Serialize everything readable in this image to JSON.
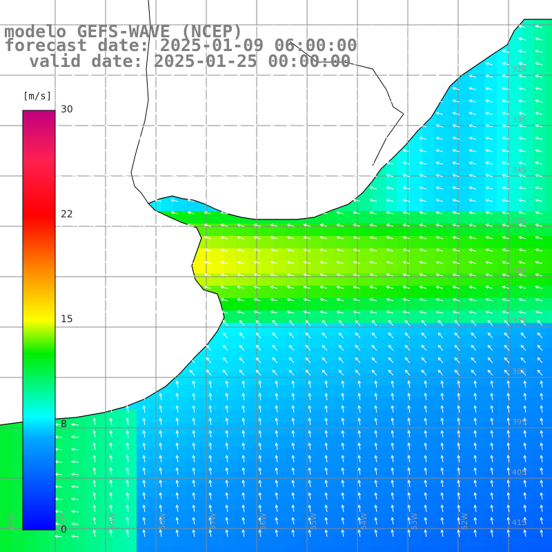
{
  "header": {
    "model_line": "modelo GEFS-WAVE (NCEP)",
    "forecast_line": "forecast date: 2025-01-09 06:00:00",
    "valid_line": "valid date: 2025-01-25 00:00:00"
  },
  "colorbar": {
    "unit": "[m/s]",
    "ticks": [
      "30",
      "22",
      "15",
      "8",
      "0"
    ],
    "colors": [
      "#0000ff",
      "#00ffff",
      "#00e000",
      "#ffff00",
      "#ff8000",
      "#ff0000",
      "#cc0077"
    ]
  },
  "map": {
    "land_color": "#ffffff",
    "grid_color": "#888888",
    "coast_color": "#000000",
    "lat_labels": [
      "32S",
      "33S",
      "34S",
      "35S",
      "36S",
      "37S",
      "38S",
      "39S",
      "40S",
      "41S"
    ],
    "lon_labels": [
      "61W",
      "60W",
      "59W",
      "58W",
      "57W",
      "56W",
      "55W",
      "54W",
      "53W",
      "52W"
    ]
  }
}
